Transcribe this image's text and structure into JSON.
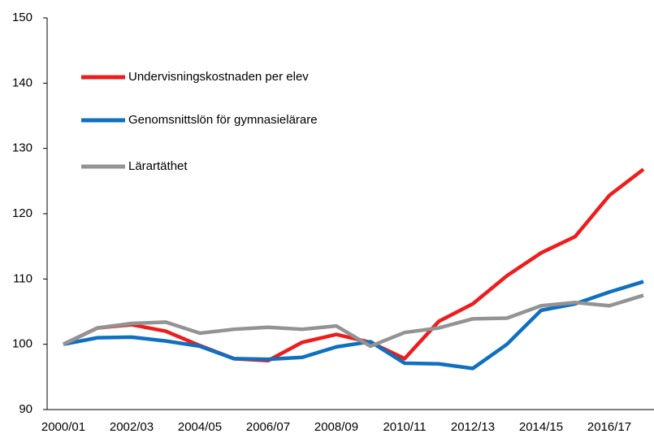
{
  "chart_data": {
    "type": "line",
    "categories": [
      "2000/01",
      null,
      "2002/03",
      null,
      "2004/05",
      null,
      "2006/07",
      null,
      "2008/09",
      null,
      "2010/11",
      null,
      "2012/13",
      null,
      "2014/15",
      null,
      "2016/17",
      null
    ],
    "series": [
      {
        "name": "Undervisningskostnaden per elev",
        "color": "#ee1c1c",
        "values": [
          100,
          102.5,
          103,
          102,
          99.8,
          97.8,
          97.5,
          100.3,
          101.5,
          100.3,
          97.8,
          103.5,
          106.2,
          110.5,
          114,
          116.5,
          122.8,
          126.8
        ]
      },
      {
        "name": "Genomsnittslön för gymnasielärare",
        "color": "#0f6fc0",
        "values": [
          100,
          101,
          101.1,
          100.5,
          99.7,
          97.8,
          97.7,
          98,
          99.6,
          100.4,
          97.1,
          97,
          96.3,
          100,
          105.2,
          106.2,
          108,
          109.6
        ]
      },
      {
        "name": "Lärartäthet",
        "color": "#939393",
        "values": [
          100,
          102.5,
          103.2,
          103.4,
          101.7,
          102.3,
          102.6,
          102.3,
          102.8,
          99.7,
          101.8,
          102.5,
          103.9,
          104,
          105.9,
          106.4,
          105.9,
          107.5
        ]
      }
    ],
    "ylim": [
      90,
      150
    ],
    "yticks": [
      90,
      100,
      110,
      120,
      130,
      140,
      150
    ],
    "legend": "upper left"
  }
}
